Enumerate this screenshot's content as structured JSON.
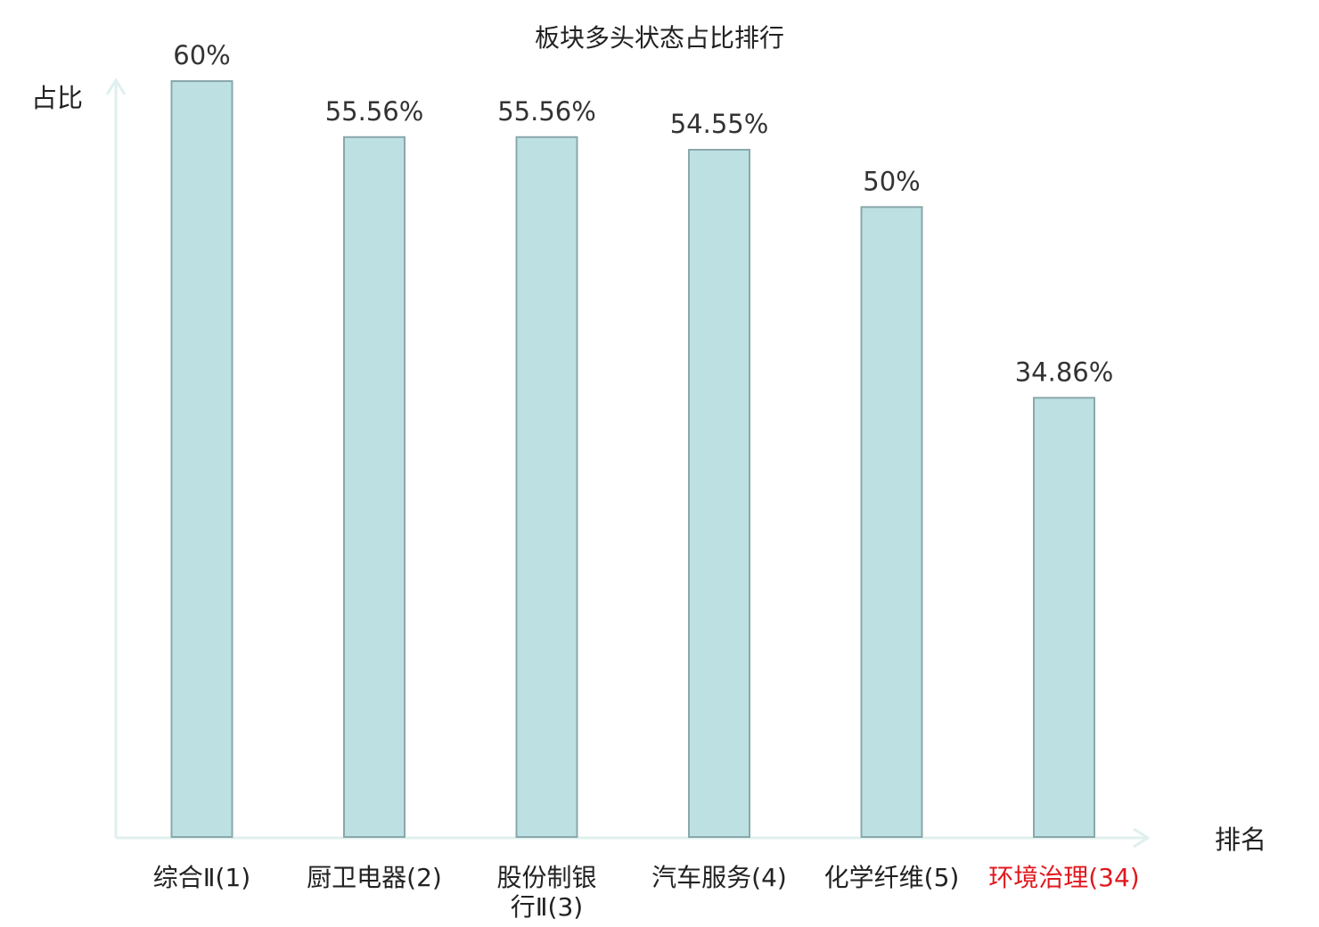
{
  "chart_data": {
    "type": "bar",
    "title": "板块多头状态占比排行",
    "ylabel": "占比",
    "xlabel": "排名",
    "categories": [
      {
        "lines": [
          "综合Ⅱ(1)"
        ],
        "highlight": false
      },
      {
        "lines": [
          "厨卫电器(2)"
        ],
        "highlight": false
      },
      {
        "lines": [
          "股份制银",
          "行Ⅱ(3)"
        ],
        "highlight": false
      },
      {
        "lines": [
          "汽车服务(4)"
        ],
        "highlight": false
      },
      {
        "lines": [
          "化学纤维(5)"
        ],
        "highlight": false
      },
      {
        "lines": [
          "环境治理(34)"
        ],
        "highlight": true
      }
    ],
    "values": [
      60,
      55.56,
      55.56,
      54.55,
      50,
      34.86
    ],
    "value_labels": [
      "60%",
      "55.56%",
      "55.56%",
      "54.55%",
      "50%",
      "34.86%"
    ],
    "ylim": [
      0,
      60
    ],
    "grid": false,
    "legend": "none",
    "colors": {
      "bar_fill": "#bde0e3",
      "bar_stroke": "#8aa8ab",
      "axis": "#dff0ee",
      "text": "#222222",
      "value_text": "#333333",
      "highlight_text": "#e0191f"
    }
  }
}
